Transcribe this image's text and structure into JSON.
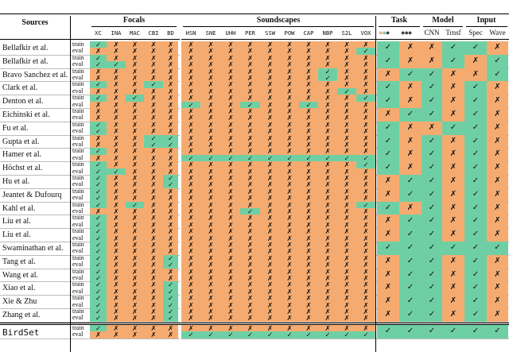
{
  "headers": {
    "sources": "Sources",
    "focals": "Focals",
    "soundscapes": "Soundscapes",
    "task": "Task",
    "model": "Model",
    "input": "Input"
  },
  "focal_cols": [
    "XC",
    "INA",
    "MAC",
    "CBI",
    "BD"
  ],
  "soundscape_cols": [
    "HSN",
    "SNE",
    "UHH",
    "PER",
    "SSW",
    "POW",
    "CAP",
    "NBP",
    "S2L",
    "VOX"
  ],
  "task_cols": [
    "●●●",
    "●●●"
  ],
  "model_cols": [
    "CNN",
    "Trnsf"
  ],
  "input_cols": [
    "Spec",
    "Wave"
  ],
  "row_labels": [
    "train",
    "eval"
  ],
  "check": "✓",
  "cross": "✗",
  "colors": {
    "orange": "#f5ab70",
    "green": "#6fcfa4"
  },
  "rows": [
    {
      "name": "Bellafkir et al.",
      "train": "100000000000000",
      "eval": "000000000000001",
      "meta": "100110"
    },
    {
      "name": "Bellafkir et al.",
      "train": "100000000000000",
      "eval": "110000000000000",
      "meta": "100101"
    },
    {
      "name": "Bravo Sanchez et al.",
      "train": "000000000000100",
      "eval": "000000000000100",
      "meta": "011001"
    },
    {
      "name": "Clark et al.",
      "train": "100100000000000",
      "eval": "000000000000010",
      "meta": "101010"
    },
    {
      "name": "Denton et al.",
      "train": "101000000000001",
      "eval": "000001001001000",
      "meta": "101010"
    },
    {
      "name": "Eichinski et al.",
      "train": "000000000000000",
      "eval": "000000000000000",
      "meta": "011010"
    },
    {
      "name": "Fu et al.",
      "train": "100000000000000",
      "eval": "100000000000000",
      "meta": "100110"
    },
    {
      "name": "Gupta et al.",
      "train": "000110000000000",
      "eval": "000110000000000",
      "meta": "101010"
    },
    {
      "name": "Hamer et al.",
      "train": "100000000000000",
      "eval": "000001111111111",
      "meta": "101010"
    },
    {
      "name": "Höchst et al.",
      "train": "100000000000001",
      "eval": "110000000000000",
      "meta": "101010"
    },
    {
      "name": "Hu et al.",
      "train": "100010000000000",
      "eval": "100010000000000",
      "meta": "011010"
    },
    {
      "name": "Jeantet & Dufourq",
      "train": "100000000000000",
      "eval": "100000000000000",
      "meta": "011010"
    },
    {
      "name": "Kahl et al.",
      "train": "101000000000001",
      "eval": "000000001000000",
      "meta": "101010"
    },
    {
      "name": "Liu et al.",
      "train": "100000000000000",
      "eval": "100000000000000",
      "meta": "011010"
    },
    {
      "name": "Liu et al.",
      "train": "100000000000000",
      "eval": "100000000000000",
      "meta": "011010"
    },
    {
      "name": "Swaminathan et al.",
      "train": "100000000000000",
      "eval": "100000000000000",
      "meta": "111111"
    },
    {
      "name": "Tang et al.",
      "train": "100010000000000",
      "eval": "100010000000000",
      "meta": "011010"
    },
    {
      "name": "Wang et al.",
      "train": "100000000000000",
      "eval": "100000000000000",
      "meta": "011010"
    },
    {
      "name": "Xiao et al.",
      "train": "100010000000000",
      "eval": "100010000000000",
      "meta": "011010"
    },
    {
      "name": "Xie & Zhu",
      "train": "100010000000000",
      "eval": "100010000000000",
      "meta": "011010"
    },
    {
      "name": "Zhang et al.",
      "train": "100010000000000",
      "eval": "100010000000000",
      "meta": "011010"
    },
    {
      "name": "BirdSet",
      "train": "100000000000000",
      "eval": "000001111111111",
      "meta": "111111"
    }
  ]
}
